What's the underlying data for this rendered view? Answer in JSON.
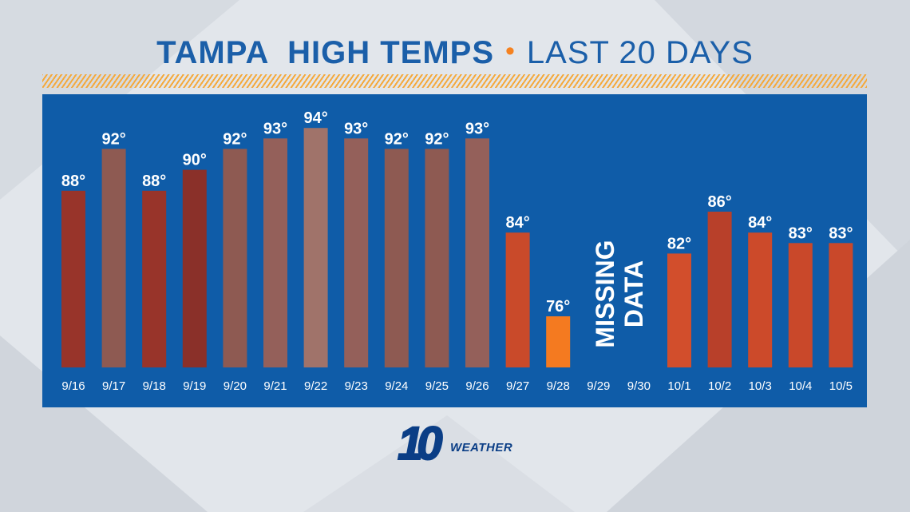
{
  "header": {
    "title_bold": "TAMPA  HIGH TEMPS",
    "separator": "•",
    "title_light": "LAST 20 DAYS"
  },
  "logo": {
    "number": "10",
    "word": "WEATHER"
  },
  "colors": {
    "hot": "#98342a",
    "warm_brown": "#a26a62",
    "mid_brown": "#8e5048",
    "orange_red": "#c94a2a",
    "bright_orange": "#f47a20",
    "panel": "#0f5ca8"
  },
  "chart_data": {
    "type": "bar",
    "title": "TAMPA  HIGH TEMPS • LAST 20 DAYS",
    "categories": [
      "9/16",
      "9/17",
      "9/18",
      "9/19",
      "9/20",
      "9/21",
      "9/22",
      "9/23",
      "9/24",
      "9/25",
      "9/26",
      "9/27",
      "9/28",
      "9/29",
      "9/30",
      "10/1",
      "10/2",
      "10/3",
      "10/4",
      "10/5"
    ],
    "values": [
      88,
      92,
      88,
      90,
      92,
      93,
      94,
      93,
      92,
      92,
      93,
      84,
      76,
      null,
      null,
      82,
      86,
      84,
      83,
      83
    ],
    "value_labels": [
      "88°",
      "92°",
      "88°",
      "90°",
      "92°",
      "93°",
      "94°",
      "93°",
      "92°",
      "92°",
      "93°",
      "84°",
      "76°",
      "",
      "",
      "82°",
      "86°",
      "84°",
      "83°",
      "83°"
    ],
    "bar_colors": [
      "#98342a",
      "#8e5a52",
      "#98342a",
      "#8a3029",
      "#8e5a52",
      "#94605a",
      "#a0736a",
      "#94605a",
      "#8e5a52",
      "#8e5a52",
      "#94605a",
      "#c94a2a",
      "#f47a20",
      "",
      "",
      "#d24e2c",
      "#b8402a",
      "#cc4a2a",
      "#c9482a",
      "#c9482a"
    ],
    "annotation": "MISSING DATA",
    "annotation_lines": [
      "MISSING",
      "DATA"
    ],
    "grid": false,
    "legend": "none"
  }
}
